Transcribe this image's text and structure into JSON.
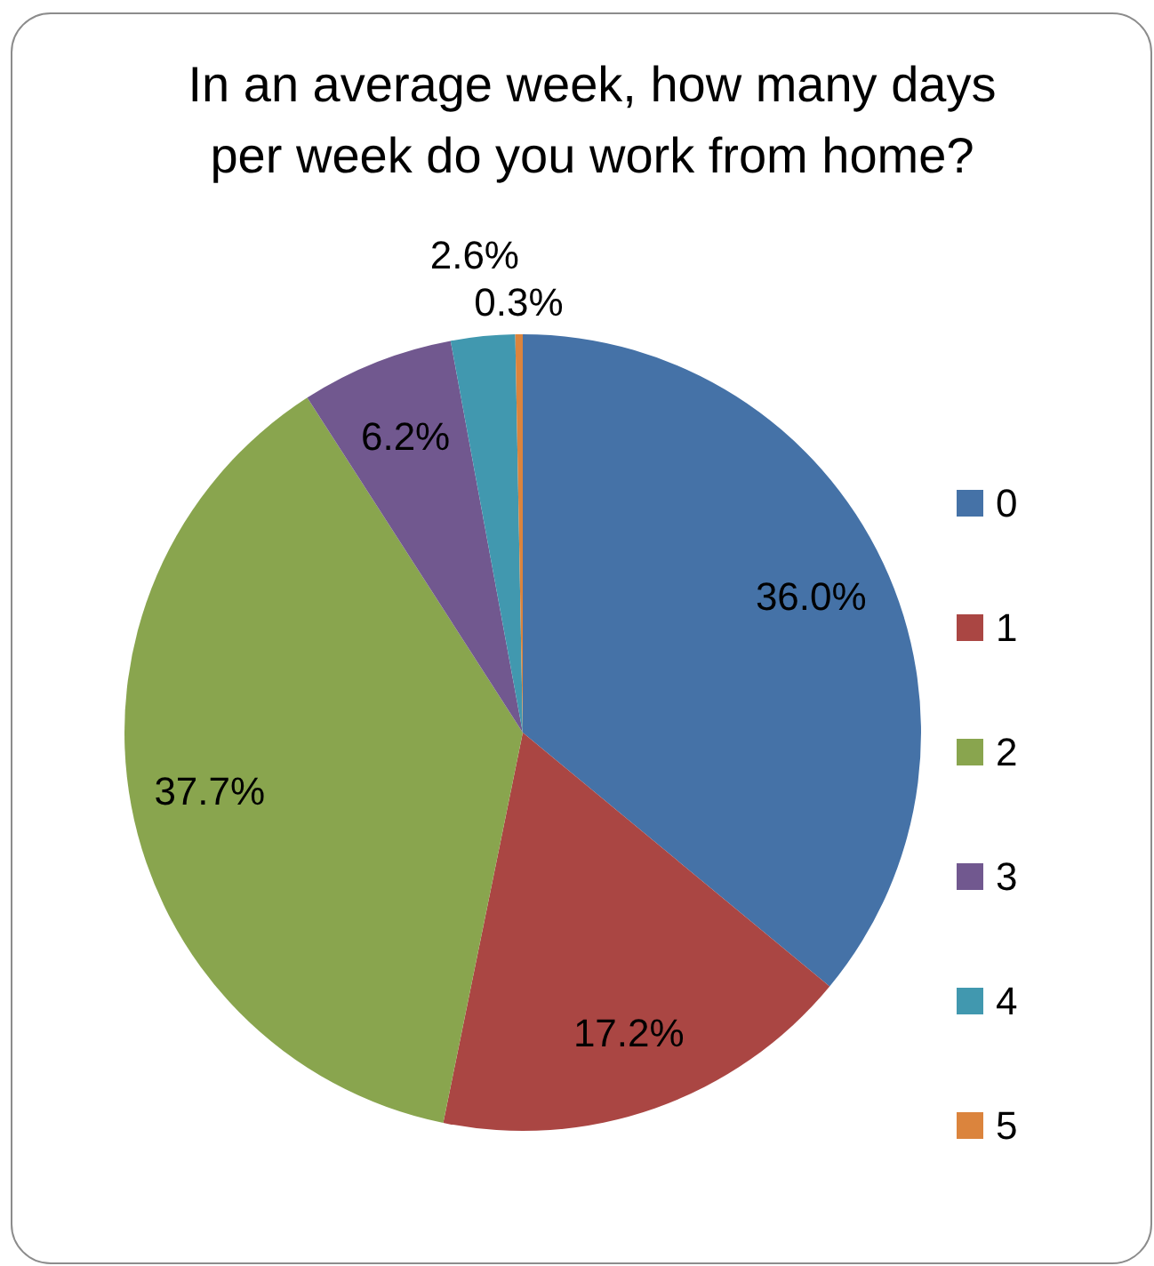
{
  "chart_data": {
    "type": "pie",
    "title": "In an average week, how many days per week do you work from home?",
    "categories": [
      "0",
      "1",
      "2",
      "3",
      "4",
      "5"
    ],
    "values": [
      36.0,
      17.2,
      37.7,
      6.2,
      2.6,
      0.3
    ],
    "colors": [
      "#4572a7",
      "#aa4643",
      "#89a54e",
      "#71588f",
      "#4198af",
      "#db843d"
    ],
    "value_labels": [
      "36.0%",
      "17.2%",
      "37.7%",
      "6.2%",
      "2.6%",
      "0.3%"
    ],
    "legend": "right"
  }
}
